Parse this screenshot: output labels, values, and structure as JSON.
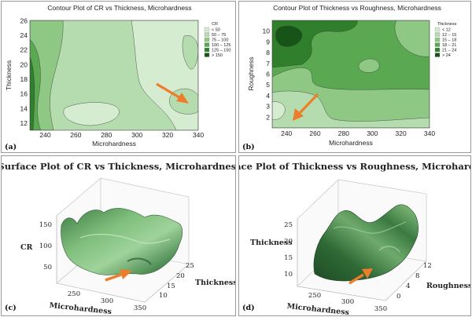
{
  "chart_data": [
    {
      "type": "contour",
      "panel_label": "(a)",
      "title": "Contour Plot of CR vs Thickness, Microhardness",
      "xlabel": "Microhardness",
      "ylabel": "Thickness",
      "xlim": [
        230,
        340
      ],
      "ylim": [
        11,
        26
      ],
      "x_ticks": [
        "240",
        "260",
        "280",
        "300",
        "320",
        "340"
      ],
      "y_ticks": [
        "12",
        "14",
        "16",
        "18",
        "20",
        "22",
        "24",
        "26"
      ],
      "legend": {
        "title": "CR",
        "entries": [
          "<    50",
          "50 –  75",
          "75 – 100",
          "100 – 125",
          "125 – 150",
          ">  150"
        ],
        "colors": [
          "#d5ecd0",
          "#b5dcae",
          "#8fc785",
          "#5ba852",
          "#2f7f2c",
          "#165417"
        ]
      }
    },
    {
      "type": "contour",
      "panel_label": "(b)",
      "title": "Contour Plot of Thickness vs Roughness, Microhardness",
      "xlabel": "Microhardness",
      "ylabel": "Roughness",
      "xlim": [
        230,
        340
      ],
      "ylim": [
        1,
        11
      ],
      "x_ticks": [
        "240",
        "260",
        "280",
        "300",
        "320",
        "340"
      ],
      "y_ticks": [
        "2",
        "3",
        "4",
        "5",
        "6",
        "7",
        "8",
        "9",
        "10"
      ],
      "legend": {
        "title": "Thickness",
        "entries": [
          "<    12",
          "12 –  15",
          "15 –  18",
          "18 –  21",
          "21 –  24",
          ">    24"
        ],
        "colors": [
          "#d5ecd0",
          "#b5dcae",
          "#8fc785",
          "#5ba852",
          "#2f7f2c",
          "#165417"
        ]
      }
    },
    {
      "type": "surface",
      "panel_label": "(c)",
      "title": "Surface Plot of CR vs Thickness, Microhardness",
      "xlabel": "Microhardness",
      "ylabel": "Thickness",
      "zlabel": "CR",
      "x_ticks": [
        "250",
        "300",
        "350"
      ],
      "y_ticks": [
        "10",
        "15",
        "20",
        "25"
      ],
      "z_ticks": [
        "50",
        "100",
        "150"
      ]
    },
    {
      "type": "surface",
      "panel_label": "(d)",
      "title": "Surface Plot of Thickness vs Roughness, Microhardness",
      "xlabel": "Microhardness",
      "ylabel": "Roughness",
      "zlabel": "Thickness",
      "x_ticks": [
        "250",
        "300",
        "350"
      ],
      "y_ticks": [
        "0",
        "4",
        "8",
        "12"
      ],
      "z_ticks": [
        "10",
        "15",
        "20",
        "25"
      ]
    }
  ],
  "colors": {
    "arrow": "#ee7d2b",
    "surface_dark": "#1f4a26",
    "surface_light": "#9fd39b"
  }
}
